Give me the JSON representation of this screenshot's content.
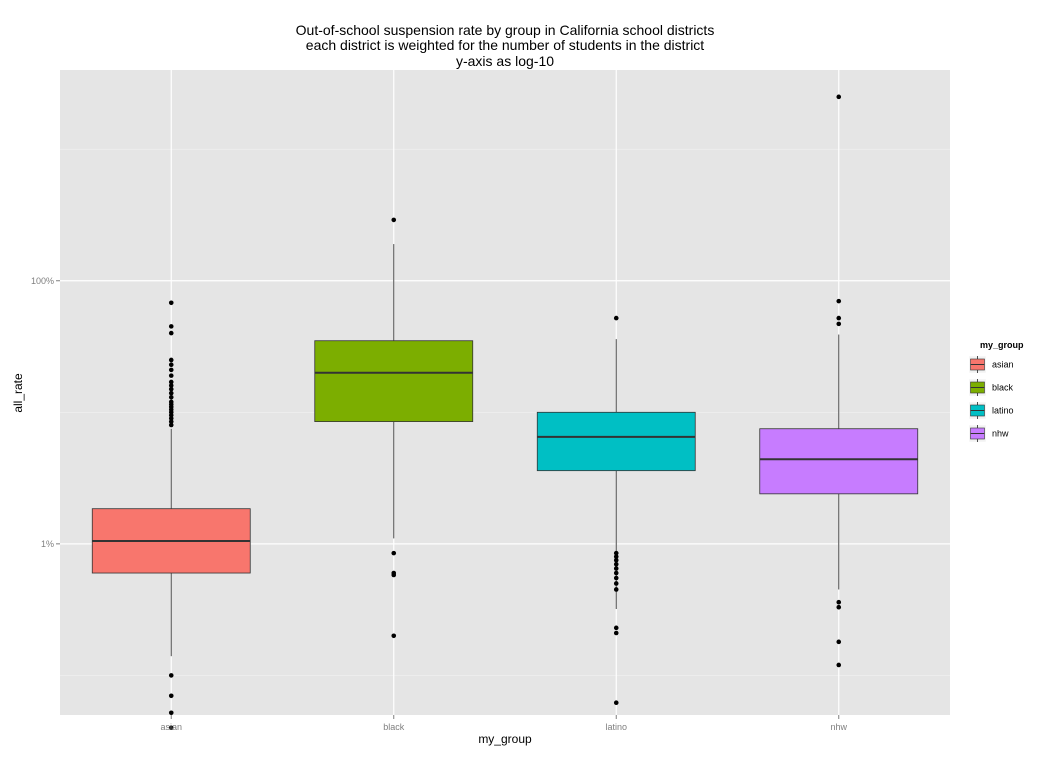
{
  "chart_data": {
    "type": "boxplot",
    "title": [
      "Out-of-school suspension rate by group in California school districts",
      "each district is weighted for the number of students in the district",
      "y-axis as log-10"
    ],
    "xlabel": "my_group",
    "ylabel": "all_rate",
    "y_scale": "log10",
    "ylim": [
      0.05,
      4000
    ],
    "y_ticks": [
      {
        "value": 1,
        "label": "1%"
      },
      {
        "value": 100,
        "label": "100%"
      }
    ],
    "y_minor_ticks": [
      0.1,
      10,
      1000
    ],
    "grid": true,
    "categories": [
      "asian",
      "black",
      "latino",
      "nhw"
    ],
    "colors": [
      "#F8766D",
      "#7CAE00",
      "#00BFC4",
      "#C77CFF"
    ],
    "boxes": [
      {
        "name": "asian",
        "whisker_low": 0.14,
        "q1": 0.6,
        "median": 1.05,
        "q3": 1.85,
        "whisker_high": 7.5,
        "outliers": [
          0.04,
          0.052,
          0.07,
          0.1,
          8,
          8.5,
          9,
          9.5,
          10,
          10.5,
          11,
          11.5,
          12,
          13,
          14,
          15,
          16,
          17,
          19,
          21,
          23,
          25,
          40,
          45,
          68
        ]
      },
      {
        "name": "black",
        "whisker_low": 1.1,
        "q1": 8.5,
        "median": 20,
        "q3": 35,
        "whisker_high": 190,
        "outliers": [
          0.2,
          0.58,
          0.6,
          0.85,
          290
        ]
      },
      {
        "name": "latino",
        "whisker_low": 0.32,
        "q1": 3.6,
        "median": 6.5,
        "q3": 10,
        "whisker_high": 36,
        "outliers": [
          0.062,
          0.21,
          0.23,
          0.45,
          0.5,
          0.55,
          0.6,
          0.65,
          0.7,
          0.75,
          0.8,
          0.85,
          52
        ]
      },
      {
        "name": "nhw",
        "whisker_low": 0.45,
        "q1": 2.4,
        "median": 4.4,
        "q3": 7.5,
        "whisker_high": 39,
        "outliers": [
          0.12,
          0.18,
          0.33,
          0.36,
          47,
          52,
          70,
          2500
        ]
      }
    ],
    "legend": {
      "title": "my_group",
      "position": "right",
      "entries": [
        "asian",
        "black",
        "latino",
        "nhw"
      ]
    }
  }
}
